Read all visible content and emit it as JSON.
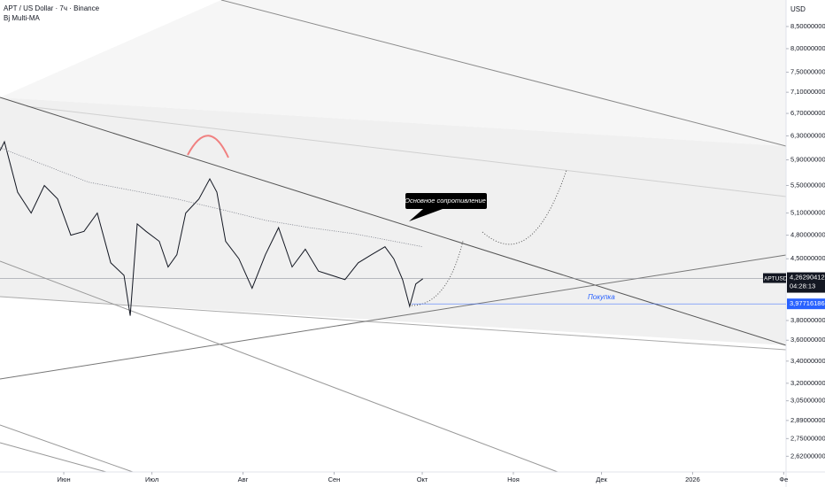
{
  "chart_data": {
    "type": "line",
    "title": "APT / US Dollar · 7ч · Binance",
    "indicator": "Bj Multi-MA",
    "y_unit": "USD",
    "log_scale": true,
    "xlim": [
      -21.7,
      245.8
    ],
    "ylim": [
      2.51,
      9.14
    ],
    "xticks": [
      {
        "value": 0,
        "label": "Июн"
      },
      {
        "value": 30,
        "label": "Июл"
      },
      {
        "value": 61,
        "label": "Авг"
      },
      {
        "value": 92,
        "label": "Сен"
      },
      {
        "value": 122,
        "label": "Окт"
      },
      {
        "value": 153,
        "label": "Ноя"
      },
      {
        "value": 183,
        "label": "Дек"
      },
      {
        "value": 214,
        "label": "2026"
      },
      {
        "value": 245,
        "label": "Фе"
      }
    ],
    "yticks": [
      {
        "value": 8.5,
        "label": "8,50000000"
      },
      {
        "value": 8.0,
        "label": "8,00000000"
      },
      {
        "value": 7.5,
        "label": "7,50000000"
      },
      {
        "value": 7.1,
        "label": "7,10000000"
      },
      {
        "value": 6.7,
        "label": "6,70000000"
      },
      {
        "value": 6.3,
        "label": "6,30000000"
      },
      {
        "value": 5.9,
        "label": "5,90000000"
      },
      {
        "value": 5.5,
        "label": "5,50000000"
      },
      {
        "value": 5.1,
        "label": "5,10000000"
      },
      {
        "value": 4.8,
        "label": "4,80000000"
      },
      {
        "value": 4.5,
        "label": "4,50000000"
      },
      {
        "value": 3.8,
        "label": "3,80000000"
      },
      {
        "value": 3.6,
        "label": "3,60000000"
      },
      {
        "value": 3.4,
        "label": "3,40000000"
      },
      {
        "value": 3.2,
        "label": "3,20000000"
      },
      {
        "value": 3.05,
        "label": "3,05000000"
      },
      {
        "value": 2.89,
        "label": "2,89000000"
      },
      {
        "value": 2.75,
        "label": "2,75000000"
      },
      {
        "value": 2.62,
        "label": "2,62000000"
      }
    ],
    "series": [
      {
        "name": "APTUSD",
        "color": "#131722",
        "x": [
          -21.7,
          -20.2,
          -15.7,
          -11.1,
          -6.6,
          -2.1,
          2.4,
          6.9,
          11.4,
          16.0,
          20.5,
          22.6,
          25.0,
          28.0,
          32.5,
          35.5,
          38.5,
          41.5,
          46.0,
          49.7,
          52.1,
          55.1,
          59.6,
          64.1,
          68.6,
          73.1,
          77.7,
          82.2,
          86.7,
          91.2,
          95.7,
          100.2,
          104.7,
          109.3,
          112.3,
          115.3,
          117.7,
          119.8,
          122.2
        ],
        "values": [
          6.05,
          6.2,
          5.4,
          5.1,
          5.5,
          5.3,
          4.8,
          4.85,
          5.1,
          4.45,
          4.3,
          3.85,
          4.95,
          4.85,
          4.72,
          4.4,
          4.55,
          5.1,
          5.3,
          5.6,
          5.4,
          4.72,
          4.5,
          4.15,
          4.55,
          4.9,
          4.4,
          4.62,
          4.35,
          4.3,
          4.25,
          4.45,
          4.55,
          4.65,
          4.5,
          4.25,
          3.95,
          4.2,
          4.26
        ]
      },
      {
        "name": "Bj Multi-MA",
        "color": "#787b86",
        "x": [
          -21.7,
          8.4,
          38.5,
          53.6,
          68.6,
          83.7,
          98.7,
          122.2
        ],
        "values": [
          6.1,
          5.55,
          5.3,
          5.15,
          5.0,
          4.9,
          4.82,
          4.65
        ]
      }
    ],
    "current_price": {
      "value": 4.26290412,
      "label": "4,26290412"
    },
    "countdown": "04:28:13",
    "buy_level": {
      "value": 3.97716186,
      "label": "3,97716186"
    },
    "annotations": {
      "resistance": "Основное сопротивление",
      "buy": "Покупка"
    }
  }
}
